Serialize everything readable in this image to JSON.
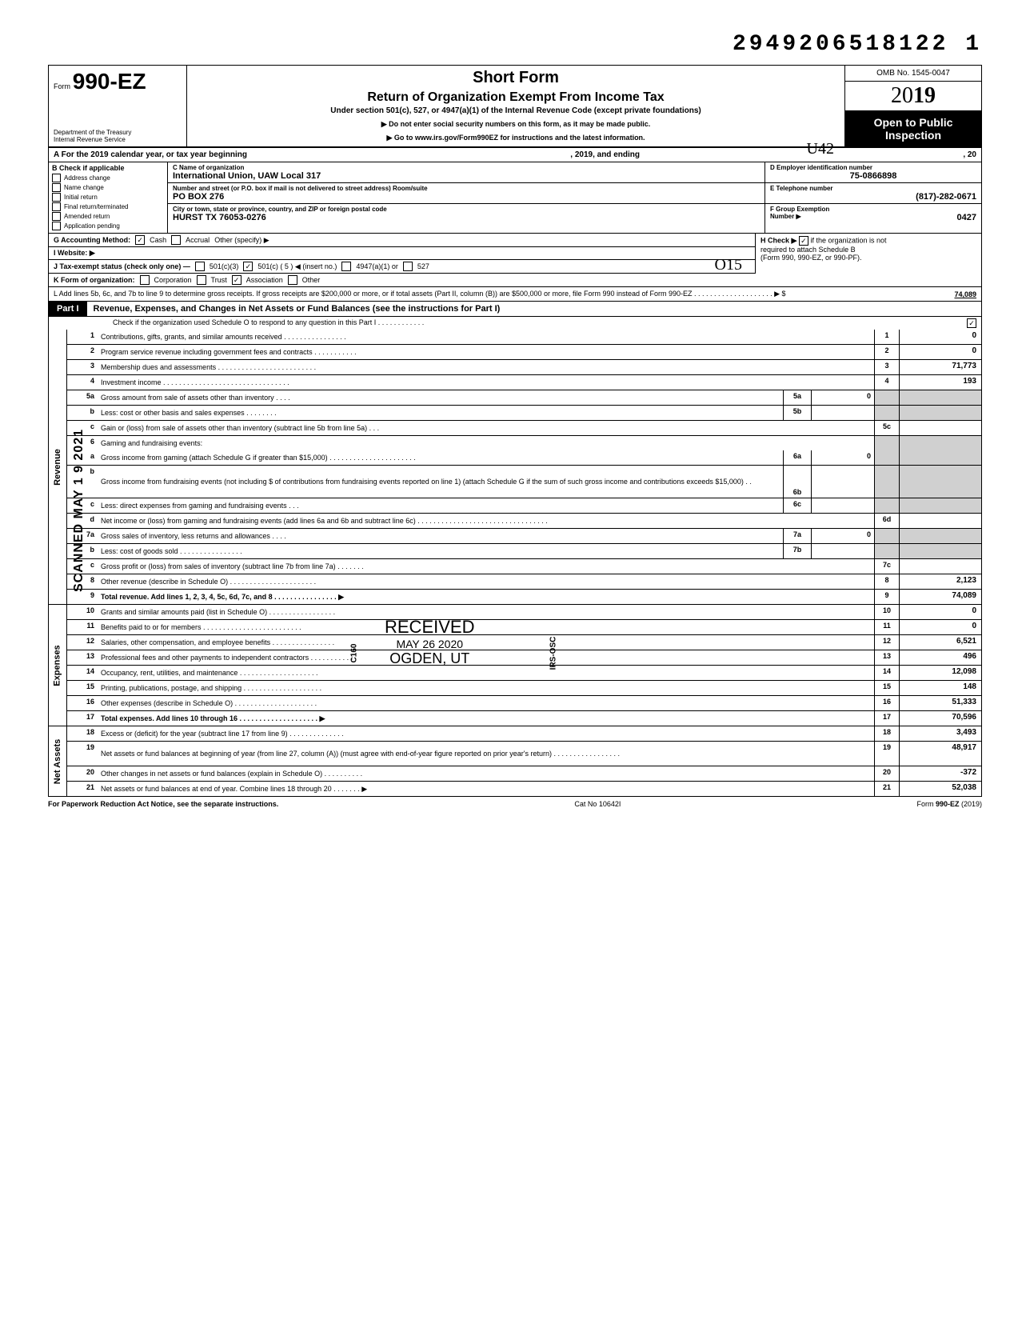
{
  "top_number": "2949206518122  1",
  "header": {
    "form_prefix": "Form",
    "form_number": "990-EZ",
    "dept1": "Department of the Treasury",
    "dept2": "Internal Revenue Service",
    "short_form": "Short Form",
    "title": "Return of Organization Exempt From Income Tax",
    "subtitle": "Under section 501(c), 527, or 4947(a)(1) of the Internal Revenue Code (except private foundations)",
    "line1": "▶ Do not enter social security numbers on this form, as it may be made public.",
    "line2": "▶ Go to www.irs.gov/Form990EZ for instructions and the latest information.",
    "omb": "OMB No. 1545-0047",
    "year_thin": "20",
    "year_bold": "19",
    "open1": "Open to Public",
    "open2": "Inspection"
  },
  "rowA": {
    "left": "A  For the 2019 calendar year, or tax year beginning",
    "mid": ", 2019, and ending",
    "right": ", 20"
  },
  "colB": {
    "hdr": "B  Check if applicable",
    "items": [
      "Address change",
      "Name change",
      "Initial return",
      "Final return/terminated",
      "Amended return",
      "Application pending"
    ]
  },
  "colC": {
    "name_label": "C  Name of organization",
    "name_value": "International Union, UAW Local 317",
    "street_label": "Number and street (or P.O. box if mail is not delivered to street address)        Room/suite",
    "street_value": "PO BOX 276",
    "city_label": "City or town, state or province, country, and ZIP or foreign postal code",
    "city_value": "HURST TX 76053-0276"
  },
  "colDEF": {
    "d_label": "D  Employer identification number",
    "d_value": "75-0866898",
    "e_label": "E  Telephone number",
    "e_value": "(817)-282-0671",
    "f_label": "F  Group Exemption",
    "f_label2": "Number ▶",
    "f_value": "0427"
  },
  "rowG": {
    "label": "G  Accounting Method:",
    "cash": "Cash",
    "accrual": "Accrual",
    "other": "Other (specify) ▶"
  },
  "rowH": {
    "text1": "H  Check ▶",
    "text2": "if the organization is not",
    "text3": "required to attach Schedule B",
    "text4": "(Form 990, 990-EZ, or 990-PF)."
  },
  "rowI": {
    "label": "I   Website: ▶"
  },
  "rowJ": {
    "label": "J  Tax-exempt status (check only one) —",
    "c3": "501(c)(3)",
    "c": "501(c) (   5   ) ◀ (insert no.)",
    "a1": "4947(a)(1) or",
    "527": "527"
  },
  "rowK": {
    "label": "K  Form of organization:",
    "corp": "Corporation",
    "trust": "Trust",
    "assoc": "Association",
    "other": "Other"
  },
  "rowL": {
    "text": "L  Add lines 5b, 6c, and 7b to line 9 to determine gross receipts. If gross receipts are $200,000 or more, or if total assets (Part II, column (B)) are $500,000 or more, file Form 990 instead of Form 990-EZ . . . . . . . . . . . . . . . . . . . . ▶  $",
    "amount": "74,089"
  },
  "part1": {
    "tag": "Part I",
    "title": "Revenue, Expenses, and Changes in Net Assets or Fund Balances (see the instructions for Part I)",
    "check_line": "Check if the organization used Schedule O to respond to any question in this Part I . . . . . . . . . . . .",
    "check_mark": "✓"
  },
  "revenue": [
    {
      "n": "1",
      "d": "Contributions, gifts, grants, and similar amounts received . . . . . . . . . . . . . . . .",
      "c": "1",
      "v": "0"
    },
    {
      "n": "2",
      "d": "Program service revenue including government fees and contracts . . . . . . . . . . .",
      "c": "2",
      "v": "0"
    },
    {
      "n": "3",
      "d": "Membership dues and assessments . . . . . . . . . . . . . . . . . . . . . . . . .",
      "c": "3",
      "v": "71,773"
    },
    {
      "n": "4",
      "d": "Investment income . . . . . . . . . . . . . . . . . . . . . . . . . . . . . . . .",
      "c": "4",
      "v": "193"
    }
  ],
  "rev5a": {
    "n": "5a",
    "d": "Gross amount from sale of assets other than inventory . . . .",
    "sc": "5a",
    "sv": "0"
  },
  "rev5b": {
    "n": "b",
    "d": "Less: cost or other basis and sales expenses . . . . . . . .",
    "sc": "5b",
    "sv": ""
  },
  "rev5c": {
    "n": "c",
    "d": "Gain or (loss) from sale of assets other than inventory (subtract line 5b from line 5a) . . .",
    "c": "5c",
    "v": ""
  },
  "rev6": {
    "n": "6",
    "d": "Gaming and fundraising events:"
  },
  "rev6a": {
    "n": "a",
    "d": "Gross income from gaming (attach Schedule G if greater than $15,000) . . . . . . . . . . . . . . . . . . . . . .",
    "sc": "6a",
    "sv": "0"
  },
  "rev6b": {
    "n": "b",
    "d": "Gross income from fundraising events (not including  $                       of contributions from fundraising events reported on line 1) (attach Schedule G if the sum of such gross income and contributions exceeds $15,000) . .",
    "sc": "6b",
    "sv": ""
  },
  "rev6c": {
    "n": "c",
    "d": "Less: direct expenses from gaming and fundraising events . . .",
    "sc": "6c",
    "sv": ""
  },
  "rev6d": {
    "n": "d",
    "d": "Net income or (loss) from gaming and fundraising events (add lines 6a and 6b and subtract line 6c) . . . . . . . . . . . . . . . . . . . . . . . . . . . . . . . . .",
    "c": "6d",
    "v": ""
  },
  "rev7a": {
    "n": "7a",
    "d": "Gross sales of inventory, less returns and allowances . . . .",
    "sc": "7a",
    "sv": "0"
  },
  "rev7b": {
    "n": "b",
    "d": "Less: cost of goods sold . . . . . . . . . . . . . . . .",
    "sc": "7b",
    "sv": ""
  },
  "rev7c": {
    "n": "c",
    "d": "Gross profit or (loss) from sales of inventory (subtract line 7b from line 7a) . . . . . . .",
    "c": "7c",
    "v": ""
  },
  "rev8": {
    "n": "8",
    "d": "Other revenue (describe in Schedule O) . . . . . . . . . . . . . . . . . . . . . .",
    "c": "8",
    "v": "2,123"
  },
  "rev9": {
    "n": "9",
    "d": "Total revenue. Add lines 1, 2, 3, 4, 5c, 6d, 7c, and 8 . . . . . . . . . . . . . . . . ▶",
    "c": "9",
    "v": "74,089"
  },
  "expenses": [
    {
      "n": "10",
      "d": "Grants and similar amounts paid (list in Schedule O) . . . . . . . . . . . . . . . . .",
      "c": "10",
      "v": "0"
    },
    {
      "n": "11",
      "d": "Benefits paid to or for members . . . . . . . . . . . . . . . . . . . . . . . . .",
      "c": "11",
      "v": "0"
    },
    {
      "n": "12",
      "d": "Salaries, other compensation, and employee benefits . . . . . . . . . . . . . . . .",
      "c": "12",
      "v": "6,521"
    },
    {
      "n": "13",
      "d": "Professional fees and other payments to independent contractors . . . . . . . . . . .",
      "c": "13",
      "v": "496"
    },
    {
      "n": "14",
      "d": "Occupancy, rent, utilities, and maintenance . . . . . . . . . . . . . . . . . . . .",
      "c": "14",
      "v": "12,098"
    },
    {
      "n": "15",
      "d": "Printing, publications, postage, and shipping . . . . . . . . . . . . . . . . . . . .",
      "c": "15",
      "v": "148"
    },
    {
      "n": "16",
      "d": "Other expenses (describe in Schedule O) . . . . . . . . . . . . . . . . . . . . .",
      "c": "16",
      "v": "51,333"
    },
    {
      "n": "17",
      "d": "Total expenses. Add lines 10 through 16 . . . . . . . . . . . . . . . . . . . . ▶",
      "c": "17",
      "v": "70,596"
    }
  ],
  "netassets": [
    {
      "n": "18",
      "d": "Excess or (deficit) for the year (subtract line 17 from line 9) . . . . . . . . . . . . . .",
      "c": "18",
      "v": "3,493"
    },
    {
      "n": "19",
      "d": "Net assets or fund balances at beginning of year (from line 27, column (A)) (must agree with end-of-year figure reported on prior year's return) . . . . . . . . . . . . . . . . .",
      "c": "19",
      "v": "48,917"
    },
    {
      "n": "20",
      "d": "Other changes in net assets or fund balances (explain in Schedule O) . . . . . . . . . .",
      "c": "20",
      "v": "-372"
    },
    {
      "n": "21",
      "d": "Net assets or fund balances at end of year. Combine lines 18 through 20 . . . . . . . ▶",
      "c": "21",
      "v": "52,038"
    }
  ],
  "footer": {
    "left": "For Paperwork Reduction Act Notice, see the separate instructions.",
    "mid": "Cat No  10642I",
    "right": "Form 990-EZ (2019)"
  },
  "stamps": {
    "received": "RECEIVED",
    "date1": "MAY 26 2020",
    "ogden": "OGDEN, UT",
    "scanned": "SCANNED MAY 1 9 2021",
    "u42": "U42",
    "o15": "O15",
    "irs_osc": "IRS-OSC",
    "c160": "C160"
  }
}
